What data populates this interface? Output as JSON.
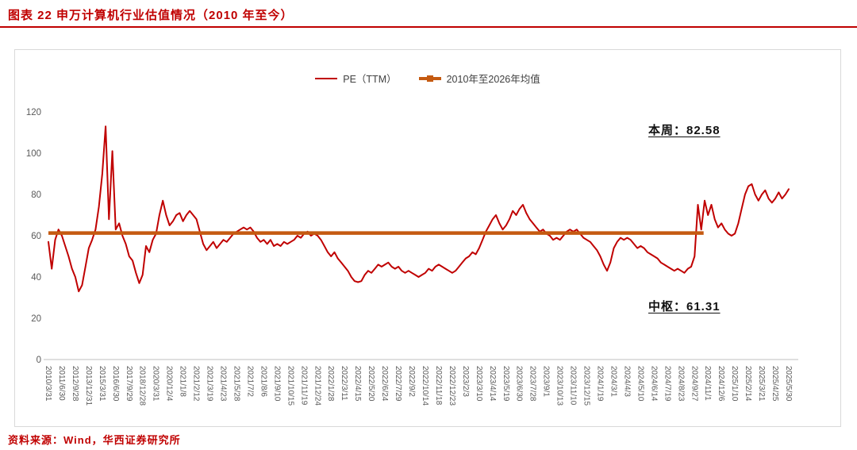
{
  "header": {
    "title": "图表 22  申万计算机行业估值情况（2010 年至今）"
  },
  "footer": {
    "source": "资料来源：Wind，华西证券研究所"
  },
  "colors": {
    "accent_red": "#C00000",
    "mean_orange": "#C55A11",
    "axis_text": "#595959"
  },
  "chart_data": {
    "type": "line",
    "title": "申万计算机行业估值情况（2010年至今）",
    "legend_position": "top-center",
    "grid": false,
    "ylim": [
      0,
      120
    ],
    "yticks": [
      0,
      20,
      40,
      60,
      80,
      100,
      120
    ],
    "xlabel": "",
    "ylabel": "",
    "annotations": [
      {
        "text": "本周：82.58",
        "value": 82.58
      },
      {
        "text": "中枢：61.31",
        "value": 61.31
      }
    ],
    "categories": [
      "2010/3/31",
      "2011/6/30",
      "2012/9/28",
      "2013/12/31",
      "2015/3/31",
      "2016/6/30",
      "2017/9/29",
      "2018/12/28",
      "2020/3/31",
      "2020/12/4",
      "2021/1/8",
      "2021/2/12",
      "2021/3/19",
      "2021/4/23",
      "2021/5/28",
      "2021/7/2",
      "2021/8/6",
      "2021/9/10",
      "2021/10/15",
      "2021/11/19",
      "2021/12/24",
      "2022/1/28",
      "2022/3/11",
      "2022/4/15",
      "2022/5/20",
      "2022/6/24",
      "2022/7/29",
      "2022/9/2",
      "2022/10/14",
      "2022/11/18",
      "2022/12/23",
      "2023/2/3",
      "2023/3/10",
      "2023/4/14",
      "2023/5/19",
      "2023/6/30",
      "2023/7/28",
      "2023/9/1",
      "2023/10/13",
      "2023/11/10",
      "2023/12/15",
      "2024/1/19",
      "2024/3/1",
      "2024/4/3",
      "2024/5/10",
      "2024/6/14",
      "2024/7/19",
      "2024/8/23",
      "2024/9/27",
      "2024/11/1",
      "2024/12/6",
      "2025/1/10",
      "2025/2/14",
      "2025/3/21",
      "2025/4/25",
      "2025/5/30"
    ],
    "points_per_category_interval": 4,
    "series": [
      {
        "name": "PE（TTM）",
        "color": "#C00000",
        "type": "line",
        "values": [
          57,
          44,
          58,
          63,
          60,
          55,
          50,
          44,
          40,
          33,
          36,
          45,
          54,
          58,
          63,
          74,
          90,
          113,
          68,
          101,
          63,
          66,
          60,
          56,
          50,
          48,
          42,
          37,
          41,
          55,
          52,
          58,
          61,
          70,
          77,
          70,
          65,
          67,
          70,
          71,
          67,
          70,
          72,
          70,
          68,
          62,
          56,
          53,
          55,
          57,
          54,
          56,
          58,
          57,
          59,
          61,
          62,
          63,
          64,
          63,
          64,
          62,
          59,
          57,
          58,
          56,
          58,
          55,
          56,
          55,
          57,
          56,
          57,
          58,
          60,
          59,
          61,
          62,
          60,
          61,
          60,
          58,
          55,
          52,
          50,
          52,
          49,
          47,
          45,
          43,
          40,
          38,
          37.5,
          38,
          41,
          43,
          42,
          44,
          46,
          45,
          46,
          47,
          45,
          44,
          45,
          43,
          42,
          43,
          42,
          41,
          40,
          41,
          42,
          44,
          43,
          45,
          46,
          45,
          44,
          43,
          42,
          43,
          45,
          47,
          49,
          50,
          52,
          51,
          54,
          58,
          62,
          65,
          68,
          70,
          66,
          63,
          65,
          68,
          72,
          70,
          73,
          75,
          71,
          68,
          66,
          64,
          62,
          63,
          61,
          60,
          58,
          59,
          58,
          60,
          62,
          63,
          62,
          63,
          61,
          59,
          58,
          57,
          55,
          53,
          50,
          46,
          43,
          47,
          54,
          57,
          59,
          58,
          59,
          58,
          56,
          54,
          55,
          54,
          52,
          51,
          50,
          49,
          47,
          46,
          45,
          44,
          43,
          44,
          43,
          42,
          44,
          45,
          50,
          75,
          63,
          77,
          70,
          75,
          68,
          64,
          66,
          63,
          61,
          60,
          61,
          66,
          73,
          80,
          84,
          85,
          80,
          77,
          80,
          82,
          78,
          76,
          78,
          81,
          78,
          80,
          82.58
        ]
      },
      {
        "name": "2010年至2026年均值",
        "color": "#C55A11",
        "type": "constant-line",
        "value": 61.31,
        "x_extent": [
          0,
          0.885
        ]
      }
    ]
  }
}
